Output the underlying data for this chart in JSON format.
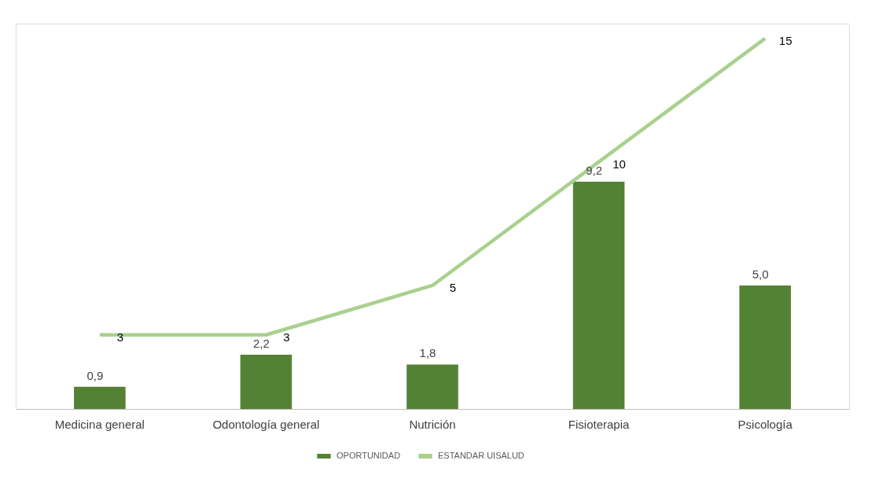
{
  "chart_data": {
    "type": "bar",
    "categories": [
      "Medicina general",
      "Odontología general",
      "Nutrición",
      "Fisioterapia",
      "Psicología"
    ],
    "series": [
      {
        "name": "OPORTUNIDAD",
        "color": "#548235",
        "values": [
          0.9,
          2.2,
          1.8,
          9.2,
          5.0
        ],
        "value_labels": [
          "0,9",
          "2,2",
          "1,8",
          "9,2",
          "5,0"
        ]
      },
      {
        "name": "ESTANDAR UISALUD",
        "type": "line",
        "color": "#a9d18e",
        "values": [
          3,
          3,
          5,
          10,
          15
        ],
        "value_labels": [
          "3",
          "3",
          "5",
          "10",
          "15"
        ]
      }
    ],
    "legend": "bottom",
    "grid": false,
    "tick_labels": "x"
  }
}
